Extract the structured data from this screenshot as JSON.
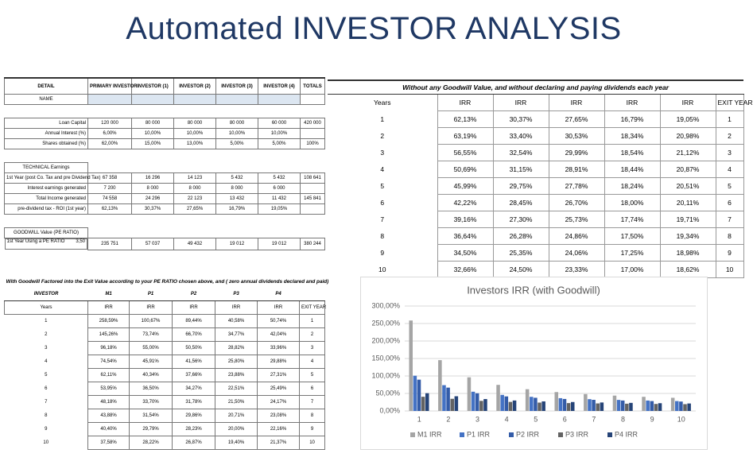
{
  "title": "Automated INVESTOR ANALYSIS",
  "setup_table": {
    "headers": [
      "DETAIL",
      "PRIMARY INVESTOR",
      "INVESTOR (1)",
      "INVESTOR (2)",
      "INVESTOR (3)",
      "INVESTOR (4)",
      "TOTALS"
    ],
    "name_row": "NAME",
    "loan_rows": [
      [
        "Loan Capital",
        "120 000",
        "80 000",
        "80 000",
        "80 000",
        "60 000",
        "420 000"
      ],
      [
        "Annual Interest (%)",
        "6,00%",
        "10,00%",
        "10,00%",
        "10,00%",
        "10,00%"
      ],
      [
        "Shares obtained (%)",
        "62,00%",
        "15,00%",
        "13,00%",
        "5,00%",
        "5,00%",
        "100%"
      ]
    ],
    "technical_title": "TECHNICAL Earnings",
    "technical_rows": [
      [
        "1st Year  (post Co. Tax and pre Dividend Tax)",
        "67 358",
        "16 296",
        "14 123",
        "5 432",
        "5 432",
        "108 641"
      ],
      [
        "Interest earnings generated",
        "7 200",
        "8 000",
        "8 000",
        "8 000",
        "6 000"
      ],
      [
        "Total Income generated",
        "74 558",
        "24 296",
        "22 123",
        "13 432",
        "11 432",
        "145 841"
      ],
      [
        "pre-dividend tax - ROI (1st year)",
        "62,13%",
        "30,37%",
        "27,65%",
        "16,79%",
        "19,05%"
      ]
    ],
    "goodwill_title": "GOODWILL Value (PE RATIO)",
    "goodwill_row": [
      "1st Year Using a PE RATIO",
      "3,50",
      "235 751",
      "57 037",
      "49 432",
      "19 012",
      "19 012",
      "380 244"
    ]
  },
  "goodwill_table": {
    "title": "With Goodwill Factored into the Exit Value according to your PE RATIO chosen above, and ( zero annual dividends declared and paid)",
    "headers": [
      "INVESTOR",
      "M1",
      "P1",
      "P2",
      "P3",
      "P4"
    ],
    "subheaders": [
      "Years",
      "IRR",
      "IRR",
      "IRR",
      "IRR",
      "IRR",
      "EXIT YEAR"
    ],
    "rows": [
      [
        "1",
        "258,59%",
        "100,67%",
        "89,44%",
        "40,58%",
        "50,74%",
        "1"
      ],
      [
        "2",
        "145,26%",
        "73,74%",
        "66,70%",
        "34,77%",
        "42,04%",
        "2"
      ],
      [
        "3",
        "96,18%",
        "55,00%",
        "50,50%",
        "28,82%",
        "33,96%",
        "3"
      ],
      [
        "4",
        "74,54%",
        "45,91%",
        "41,56%",
        "25,80%",
        "29,88%",
        "4"
      ],
      [
        "5",
        "62,11%",
        "40,34%",
        "37,66%",
        "23,88%",
        "27,31%",
        "5"
      ],
      [
        "6",
        "53,95%",
        "36,50%",
        "34,27%",
        "22,51%",
        "25,49%",
        "6"
      ],
      [
        "7",
        "48,18%",
        "33,70%",
        "31,78%",
        "21,50%",
        "24,17%",
        "7"
      ],
      [
        "8",
        "43,88%",
        "31,54%",
        "29,86%",
        "20,71%",
        "23,08%",
        "8"
      ],
      [
        "9",
        "40,40%",
        "29,79%",
        "28,23%",
        "20,00%",
        "22,16%",
        "9"
      ],
      [
        "10",
        "37,58%",
        "28,22%",
        "26,87%",
        "19,40%",
        "21,37%",
        "10"
      ]
    ]
  },
  "no_goodwill_table": {
    "title": "Without any Goodwill Value, and without declaring and paying dividends each year",
    "headers": [
      "Years",
      "IRR",
      "IRR",
      "IRR",
      "IRR",
      "IRR",
      "EXIT YEAR"
    ],
    "rows": [
      [
        "1",
        "62,13%",
        "30,37%",
        "27,65%",
        "16,79%",
        "19,05%",
        "1"
      ],
      [
        "2",
        "63,19%",
        "33,40%",
        "30,53%",
        "18,34%",
        "20,98%",
        "2"
      ],
      [
        "3",
        "56,55%",
        "32,54%",
        "29,99%",
        "18,54%",
        "21,12%",
        "3"
      ],
      [
        "4",
        "50,69%",
        "31,15%",
        "28,91%",
        "18,44%",
        "20,87%",
        "4"
      ],
      [
        "5",
        "45,99%",
        "29,75%",
        "27,78%",
        "18,24%",
        "20,51%",
        "5"
      ],
      [
        "6",
        "42,22%",
        "28,45%",
        "26,70%",
        "18,00%",
        "20,11%",
        "6"
      ],
      [
        "7",
        "39,16%",
        "27,30%",
        "25,73%",
        "17,74%",
        "19,71%",
        "7"
      ],
      [
        "8",
        "36,64%",
        "26,28%",
        "24,86%",
        "17,50%",
        "19,34%",
        "8"
      ],
      [
        "9",
        "34,50%",
        "25,35%",
        "24,06%",
        "17,25%",
        "18,98%",
        "9"
      ],
      [
        "10",
        "32,66%",
        "24,50%",
        "23,33%",
        "17,00%",
        "18,62%",
        "10"
      ]
    ]
  },
  "chart_data": {
    "type": "bar",
    "title": "Investors IRR (with Goodwill)",
    "categories": [
      "1",
      "2",
      "3",
      "4",
      "5",
      "6",
      "7",
      "8",
      "9",
      "10"
    ],
    "series": [
      {
        "name": "M1 IRR",
        "color": "#a5a5a5",
        "values": [
          258.59,
          145.26,
          96.18,
          74.54,
          62.11,
          53.95,
          48.18,
          43.88,
          40.4,
          37.58
        ]
      },
      {
        "name": "P1 IRR",
        "color": "#4472c4",
        "values": [
          100.67,
          73.74,
          55.0,
          45.91,
          40.34,
          36.5,
          33.7,
          31.54,
          29.79,
          28.22
        ]
      },
      {
        "name": "P2 IRR",
        "color": "#345ca8",
        "values": [
          89.44,
          66.7,
          50.5,
          41.56,
          37.66,
          34.27,
          31.78,
          29.86,
          28.23,
          26.87
        ]
      },
      {
        "name": "P3 IRR",
        "color": "#636363",
        "values": [
          40.58,
          34.77,
          28.82,
          25.8,
          23.88,
          22.51,
          21.5,
          20.71,
          20.0,
          19.4
        ]
      },
      {
        "name": "P4 IRR",
        "color": "#264478",
        "values": [
          50.74,
          42.04,
          33.96,
          29.88,
          27.31,
          25.49,
          24.17,
          23.08,
          22.16,
          21.37
        ]
      }
    ],
    "ylim": [
      0,
      300
    ],
    "yticks": [
      {
        "value": 0,
        "label": "0,00%"
      },
      {
        "value": 50,
        "label": "50,00%"
      },
      {
        "value": 100,
        "label": "100,00%"
      },
      {
        "value": 150,
        "label": "150,00%"
      },
      {
        "value": 200,
        "label": "200,00%"
      },
      {
        "value": 250,
        "label": "250,00%"
      },
      {
        "value": 300,
        "label": "300,00%"
      }
    ],
    "grid": true,
    "legend": "bottom"
  }
}
